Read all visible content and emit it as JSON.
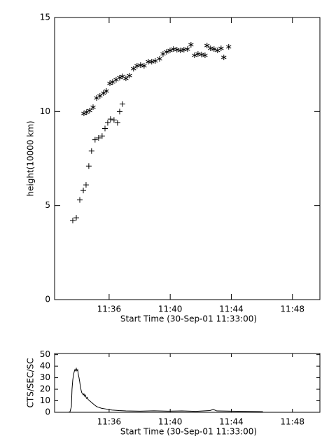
{
  "chart_data": [
    {
      "type": "scatter",
      "xlabel": "Start Time (30-Sep-01 11:33:00)",
      "ylabel": "height(10000 km)",
      "xlim": [
        -0.57,
        16.8
      ],
      "ylim": [
        0,
        15
      ],
      "xticks": [
        {
          "value": 3,
          "label": "11:36"
        },
        {
          "value": 7,
          "label": "11:40"
        },
        {
          "value": 11,
          "label": "11:44"
        },
        {
          "value": 15,
          "label": "11:48"
        }
      ],
      "yticks": [
        0,
        5,
        10,
        15
      ],
      "series": [
        {
          "marker": "plus",
          "color": "#000000",
          "x": [
            0.62,
            0.85,
            1.08,
            1.31,
            1.49,
            1.67,
            1.85,
            2.08,
            2.31,
            2.54,
            2.73,
            2.91,
            3.09,
            3.32,
            3.55,
            3.69,
            3.87
          ],
          "values": [
            4.2,
            4.35,
            5.3,
            5.8,
            6.1,
            7.1,
            7.9,
            8.5,
            8.6,
            8.7,
            9.1,
            9.4,
            9.6,
            9.55,
            9.4,
            10.0,
            10.4
          ]
        },
        {
          "marker": "asterisk",
          "color": "#000000",
          "x": [
            1.35,
            1.53,
            1.72,
            1.95,
            2.18,
            2.4,
            2.63,
            2.82,
            3.05,
            3.23,
            3.46,
            3.69,
            3.87,
            4.1,
            4.33,
            4.6,
            4.83,
            5.06,
            5.29,
            5.57,
            5.79,
            6.02,
            6.3,
            6.53,
            6.76,
            6.99,
            7.21,
            7.44,
            7.67,
            7.9,
            8.13,
            8.36,
            8.59,
            8.82,
            9.05,
            9.28,
            9.41,
            9.64,
            9.87,
            10.1,
            10.33,
            10.51,
            10.83
          ],
          "values": [
            9.9,
            9.97,
            10.05,
            10.23,
            10.72,
            10.83,
            10.98,
            11.09,
            11.5,
            11.57,
            11.69,
            11.8,
            11.87,
            11.76,
            11.91,
            12.28,
            12.43,
            12.47,
            12.43,
            12.65,
            12.65,
            12.69,
            12.8,
            13.06,
            13.17,
            13.25,
            13.32,
            13.29,
            13.25,
            13.29,
            13.32,
            13.55,
            12.99,
            13.06,
            13.03,
            12.99,
            13.51,
            13.36,
            13.32,
            13.25,
            13.36,
            12.88,
            13.44
          ]
        }
      ]
    },
    {
      "type": "line",
      "xlabel": "Start Time (30-Sep-01 11:33:00)",
      "ylabel": "CTS/SEC/SC",
      "xlim": [
        -0.57,
        16.8
      ],
      "ylim": [
        0,
        51
      ],
      "xticks": [
        {
          "value": 3,
          "label": "11:36"
        },
        {
          "value": 7,
          "label": "11:40"
        },
        {
          "value": 11,
          "label": "11:44"
        },
        {
          "value": 15,
          "label": "11:48"
        }
      ],
      "yticks": [
        0,
        10,
        20,
        30,
        40,
        50
      ],
      "color": "#000000",
      "x": [
        0.34,
        0.44,
        0.53,
        0.57,
        0.62,
        0.66,
        0.71,
        0.76,
        0.8,
        0.85,
        0.89,
        0.94,
        0.98,
        1.03,
        1.08,
        1.12,
        1.17,
        1.21,
        1.26,
        1.31,
        1.35,
        1.4,
        1.44,
        1.49,
        1.53,
        1.58,
        1.63,
        1.72,
        1.81,
        1.9,
        1.99,
        2.08,
        2.18,
        2.27,
        2.5,
        2.73,
        3.18,
        3.64,
        4.1,
        5.02,
        5.93,
        6.85,
        7.76,
        8.68,
        9.6,
        9.82,
        10.05,
        10.97,
        11.88,
        12.8,
        13.07
      ],
      "values": [
        0,
        0.5,
        5,
        20,
        28,
        32,
        35,
        37,
        36,
        38,
        36,
        37,
        33,
        30,
        26,
        22,
        19,
        17,
        16,
        15,
        16,
        14,
        15,
        13,
        12,
        13,
        11,
        10,
        9,
        8,
        7,
        6,
        5,
        4.5,
        3.5,
        3,
        2,
        1.5,
        1.2,
        1,
        1.3,
        1,
        1.2,
        0.8,
        1.5,
        2.5,
        1.2,
        1,
        0.8,
        0.6,
        0.5
      ]
    }
  ]
}
